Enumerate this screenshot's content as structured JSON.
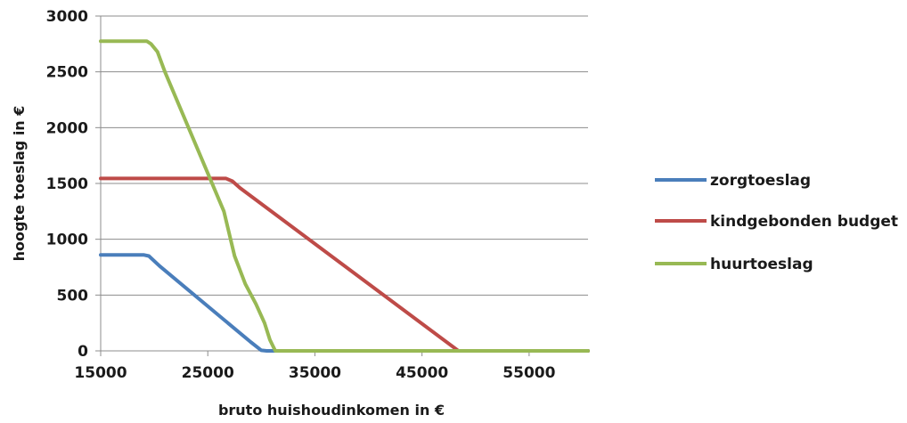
{
  "chart_data": {
    "type": "line",
    "title": "",
    "xlabel": "bruto huishoudinkomen in €",
    "ylabel": "hoogte toeslag in €",
    "xlim": [
      15000,
      60500
    ],
    "ylim": [
      0,
      3000
    ],
    "x_ticks": [
      15000,
      25000,
      35000,
      45000,
      55000
    ],
    "y_ticks": [
      0,
      500,
      1000,
      1500,
      2000,
      2500,
      3000
    ],
    "grid": true,
    "legend_position": "right",
    "series": [
      {
        "name": "zorgtoeslag",
        "color": "#4a7ebb",
        "points": [
          [
            15000,
            860
          ],
          [
            19000,
            860
          ],
          [
            19500,
            850
          ],
          [
            20500,
            760
          ],
          [
            29000,
            80
          ],
          [
            30000,
            5
          ],
          [
            30500,
            0
          ],
          [
            60500,
            0
          ]
        ]
      },
      {
        "name": "kindgebonden budget",
        "color": "#be4b48",
        "points": [
          [
            15000,
            1545
          ],
          [
            26700,
            1545
          ],
          [
            27300,
            1520
          ],
          [
            28000,
            1460
          ],
          [
            48400,
            0
          ],
          [
            60500,
            0
          ]
        ]
      },
      {
        "name": "huurtoeslag",
        "color": "#98b954",
        "points": [
          [
            15000,
            2775
          ],
          [
            19300,
            2775
          ],
          [
            19700,
            2750
          ],
          [
            20300,
            2680
          ],
          [
            21000,
            2500
          ],
          [
            26500,
            1250
          ],
          [
            27500,
            850
          ],
          [
            28500,
            600
          ],
          [
            29500,
            420
          ],
          [
            30300,
            250
          ],
          [
            30800,
            100
          ],
          [
            31300,
            0
          ],
          [
            60500,
            0
          ]
        ]
      }
    ]
  }
}
